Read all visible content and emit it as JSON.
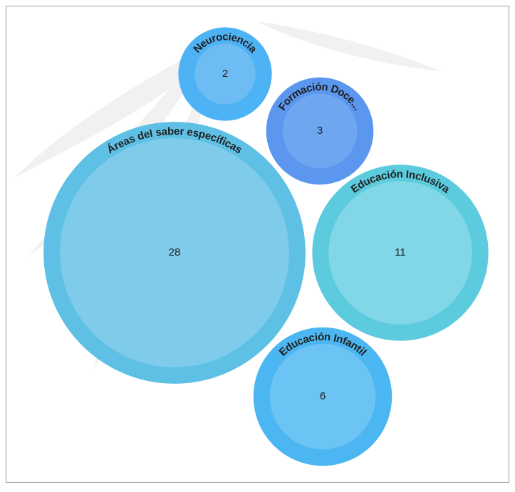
{
  "chart_data": {
    "type": "bubble",
    "categories": [
      "Neurociencia",
      "Formación Doce...",
      "Áreas del saber específicas",
      "Educación Inclusiva",
      "Educación Infantil"
    ],
    "values": [
      2,
      3,
      28,
      11,
      6
    ],
    "colors": [
      "#4db3f5",
      "#5b97ef",
      "#5fc0e6",
      "#5ccbdd",
      "#4bb6f1"
    ],
    "inner_colors": [
      "#6dbcf4",
      "#6fa6f0",
      "#7ecbea",
      "#81d7e8",
      "#6cc4f5"
    ]
  }
}
